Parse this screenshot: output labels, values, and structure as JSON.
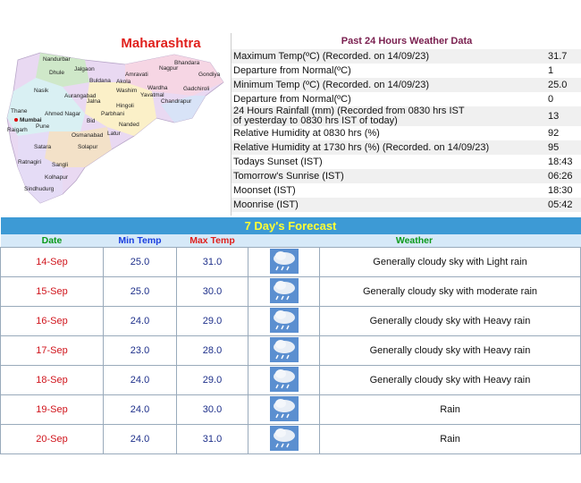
{
  "map": {
    "title": "Maharashtra",
    "places": [
      "Nandurbar",
      "Dhule",
      "Jalgaon",
      "Bhandara",
      "Nagpur",
      "Amravati",
      "Gondiya",
      "Buldana",
      "Akola",
      "Wardha",
      "Gadchiroli",
      "Nasik",
      "Washim",
      "Aurangabad",
      "Yavatmal",
      "Chandrapur",
      "Jalna",
      "Hingoli",
      "Thane",
      "Ahmed Nagar",
      "Parbhani",
      "Mumbai",
      "Bid",
      "Nanded",
      "Raigarh",
      "Pune",
      "Latur",
      "Osmanabad",
      "Satara",
      "Solapur",
      "Ratnagiri",
      "Sangli",
      "Kolhapur",
      "Sindhudurg"
    ]
  },
  "past24": {
    "title": "Past 24 Hours Weather Data",
    "rows": [
      [
        "Maximum Temp(ºC) (Recorded. on 14/09/23)",
        "31.7"
      ],
      [
        "Departure from Normal(ºC)",
        "1"
      ],
      [
        "Minimum Temp (ºC) (Recorded. on 14/09/23)",
        "25.0"
      ],
      [
        "Departure from Normal(ºC)",
        "0"
      ],
      [
        "24 Hours Rainfall (mm) (Recorded from 0830 hrs IST\nof yesterday to 0830 hrs IST of today)",
        "13"
      ],
      [
        "Relative Humidity at 0830 hrs (%)",
        "92"
      ],
      [
        "Relative Humidity at 1730 hrs (%) (Recorded. on 14/09/23)",
        "95"
      ],
      [
        "Todays Sunset (IST)",
        "18:43"
      ],
      [
        "Tomorrow's Sunrise (IST)",
        "06:26"
      ],
      [
        "Moonset (IST)",
        "18:30"
      ],
      [
        "Moonrise (IST)",
        "05:42"
      ]
    ]
  },
  "forecast": {
    "title": "7 Day's Forecast",
    "headers": [
      "Date",
      "Min Temp",
      "Max Temp",
      "Weather"
    ],
    "rows": [
      [
        "14-Sep",
        "25.0",
        "31.0",
        "Generally cloudy sky with Light rain"
      ],
      [
        "15-Sep",
        "25.0",
        "30.0",
        "Generally cloudy sky with moderate rain"
      ],
      [
        "16-Sep",
        "24.0",
        "29.0",
        "Generally cloudy sky with Heavy rain"
      ],
      [
        "17-Sep",
        "23.0",
        "28.0",
        "Generally cloudy sky with Heavy rain"
      ],
      [
        "18-Sep",
        "24.0",
        "29.0",
        "Generally cloudy sky with Heavy rain"
      ],
      [
        "19-Sep",
        "24.0",
        "30.0",
        "Rain"
      ],
      [
        "20-Sep",
        "24.0",
        "31.0",
        "Rain"
      ]
    ]
  }
}
